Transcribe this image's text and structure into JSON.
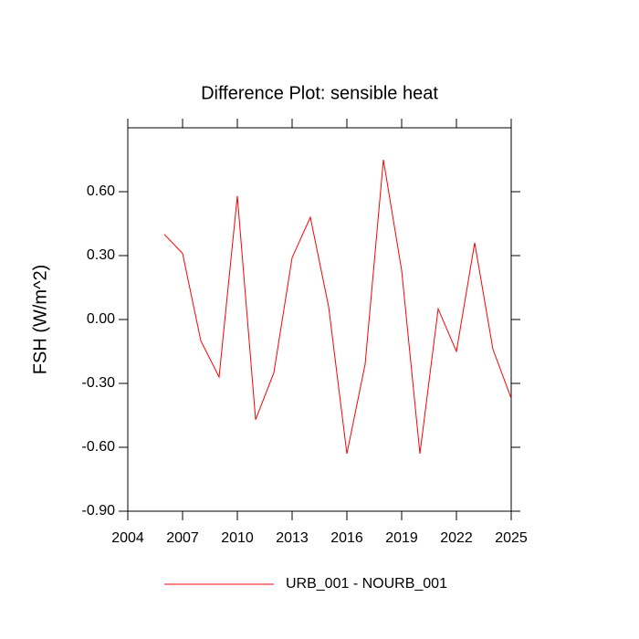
{
  "chart_data": {
    "type": "line",
    "title": "Difference Plot: sensible heat",
    "y_label": "FSH  (W/m^2)",
    "x": [
      2006,
      2007,
      2008,
      2009,
      2010,
      2011,
      2012,
      2013,
      2014,
      2015,
      2016,
      2017,
      2018,
      2019,
      2020,
      2021,
      2022,
      2023,
      2024,
      2025
    ],
    "series": [
      {
        "name": "URB_001 - NOURB_001",
        "color": "#ff0000",
        "values": [
          0.4,
          0.31,
          -0.1,
          -0.27,
          0.58,
          -0.47,
          -0.25,
          0.29,
          0.48,
          0.06,
          -0.63,
          -0.21,
          0.75,
          0.23,
          -0.63,
          0.05,
          -0.15,
          0.36,
          -0.14,
          -0.37
        ]
      }
    ],
    "xlim": [
      2004,
      2025
    ],
    "xticks": [
      2004,
      2007,
      2010,
      2013,
      2016,
      2019,
      2022,
      2025
    ],
    "ylim": [
      -0.9,
      0.9
    ],
    "yticks": [
      {
        "value": -0.9,
        "label": "-0.90"
      },
      {
        "value": -0.6,
        "label": "-0.60"
      },
      {
        "value": -0.3,
        "label": "-0.30"
      },
      {
        "value": 0,
        "label": "0.00"
      },
      {
        "value": 0.3,
        "label": "0.30"
      },
      {
        "value": 0.6,
        "label": "0.60"
      }
    ],
    "legend": "bottom"
  }
}
